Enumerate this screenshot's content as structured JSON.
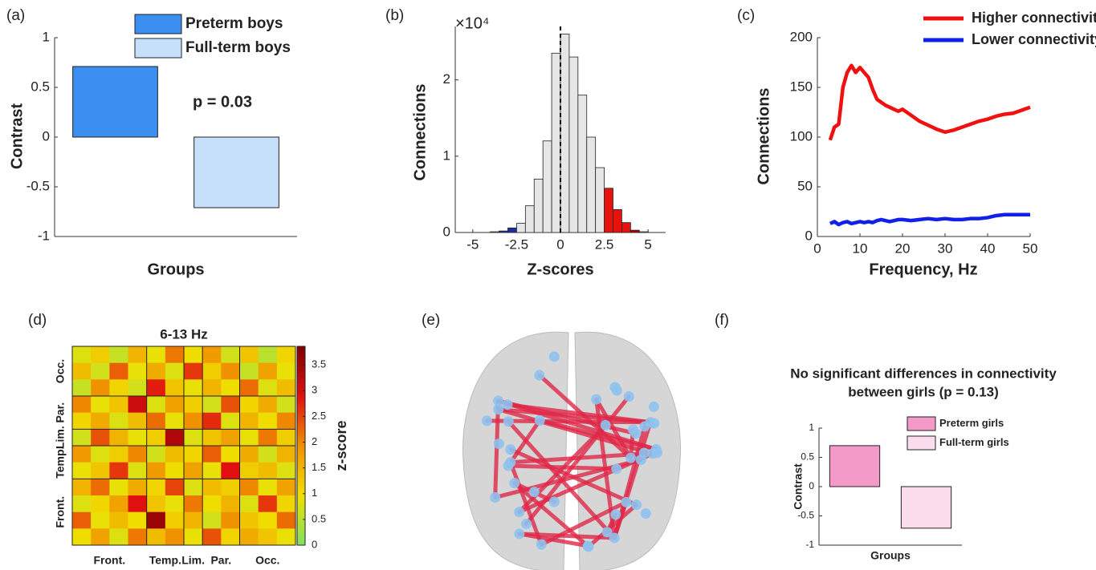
{
  "chart_data": [
    {
      "type": "bar",
      "label": "(a)",
      "xlabel": "Groups",
      "ylabel": "Contrast",
      "annotation": "p = 0.03",
      "series": [
        {
          "name": "Preterm boys",
          "color": "#3a8ff0",
          "values": [
            0.71
          ]
        },
        {
          "name": "Full-term boys",
          "color": "#c6e0fb",
          "values": [
            -0.71
          ]
        }
      ],
      "ylim": [
        -1,
        1
      ],
      "yticks": [
        -1,
        -0.5,
        0,
        0.5,
        1
      ]
    },
    {
      "type": "histogram",
      "label": "(b)",
      "xlabel": "Z-scores",
      "ylabel": "Connections",
      "multiplier": "×10⁴",
      "bins": [
        -4,
        -3.5,
        -3,
        -2.5,
        -2,
        -1.5,
        -1,
        -0.5,
        0,
        0.5,
        1,
        1.5,
        2,
        2.5,
        3,
        3.5,
        4,
        4.5,
        5
      ],
      "values": [
        0.01,
        0.02,
        0.06,
        0.12,
        0.35,
        0.7,
        1.2,
        2.35,
        2.6,
        2.3,
        1.8,
        1.25,
        0.85,
        0.58,
        0.3,
        0.13,
        0.03,
        0.01
      ],
      "colors": [
        "#e6e6e6",
        "#1a2fa0",
        "#1a2fa0",
        "#e6e6e6",
        "#e6e6e6",
        "#e6e6e6",
        "#e6e6e6",
        "#e6e6e6",
        "#e6e6e6",
        "#e6e6e6",
        "#e6e6e6",
        "#e6e6e6",
        "#e6e6e6",
        "#e8120c",
        "#e8120c",
        "#e8120c",
        "#b00000",
        "#e6e6e6"
      ],
      "vline": 0,
      "xlim": [
        -6,
        6
      ],
      "xticks": [
        -5,
        -2.5,
        0,
        2.5,
        5
      ],
      "ylim": [
        0,
        2.7
      ],
      "yticks": [
        0,
        1,
        2
      ]
    },
    {
      "type": "line",
      "label": "(c)",
      "xlabel": "Frequency, Hz",
      "ylabel": "Connections",
      "x": [
        3,
        4,
        5,
        6,
        7,
        8,
        9,
        10,
        11,
        12,
        13,
        14,
        15,
        16,
        17,
        18,
        19,
        20,
        22,
        24,
        26,
        28,
        30,
        32,
        34,
        36,
        38,
        40,
        42,
        44,
        46,
        48,
        50
      ],
      "series": [
        {
          "name": "Higher connectivity",
          "color": "#f01010",
          "values": [
            97,
            110,
            113,
            150,
            165,
            172,
            165,
            170,
            165,
            160,
            148,
            138,
            135,
            132,
            130,
            128,
            126,
            128,
            122,
            116,
            112,
            108,
            105,
            107,
            110,
            113,
            116,
            118,
            121,
            123,
            124,
            127,
            130
          ]
        },
        {
          "name": "Lower connectivity",
          "color": "#1020e8",
          "values": [
            13,
            15,
            12,
            14,
            15,
            13,
            14,
            15,
            14,
            15,
            14,
            16,
            17,
            16,
            15,
            16,
            17,
            17,
            16,
            17,
            18,
            17,
            18,
            17,
            17,
            18,
            18,
            19,
            21,
            22,
            22,
            22,
            22
          ]
        }
      ],
      "xlim": [
        0,
        50
      ],
      "xticks": [
        0,
        10,
        20,
        30,
        40,
        50
      ],
      "ylim": [
        0,
        200
      ],
      "yticks": [
        0,
        50,
        100,
        150,
        200
      ]
    },
    {
      "type": "heatmap",
      "label": "(d)",
      "title": "6-13 Hz",
      "colorbar_label": "z-score",
      "regions": [
        "Front.",
        "Temp.",
        "Lim.",
        "Par.",
        "Occ."
      ],
      "region_edges": [
        4,
        6,
        7,
        9
      ],
      "matrix": [
        [
          0.8,
          1.2,
          0.6,
          1.5,
          0.9,
          2.1,
          1.0,
          1.8,
          0.7,
          1.3,
          0.5,
          1.1
        ],
        [
          1.4,
          0.7,
          2.3,
          0.9,
          1.6,
          0.8,
          2.6,
          1.2,
          1.9,
          0.6,
          1.7,
          0.9
        ],
        [
          0.6,
          1.9,
          1.1,
          0.7,
          2.8,
          1.3,
          0.9,
          1.5,
          1.0,
          2.2,
          0.8,
          1.4
        ],
        [
          2.0,
          0.9,
          1.3,
          3.1,
          0.8,
          1.7,
          1.2,
          0.7,
          2.4,
          1.1,
          1.6,
          0.7
        ],
        [
          1.1,
          1.6,
          0.8,
          1.4,
          2.2,
          0.9,
          1.9,
          2.7,
          0.8,
          1.5,
          1.0,
          2.0
        ],
        [
          0.7,
          2.4,
          1.5,
          0.9,
          1.2,
          3.4,
          0.8,
          1.3,
          1.7,
          0.9,
          2.1,
          1.2
        ],
        [
          1.8,
          0.8,
          1.2,
          2.0,
          0.7,
          1.4,
          1.1,
          2.3,
          1.0,
          1.6,
          0.7,
          1.5
        ],
        [
          0.9,
          1.3,
          2.6,
          0.8,
          1.8,
          1.0,
          1.7,
          0.9,
          2.9,
          1.2,
          1.4,
          0.8
        ],
        [
          1.5,
          2.2,
          0.9,
          1.6,
          1.1,
          2.5,
          0.8,
          1.4,
          1.2,
          2.0,
          0.9,
          1.7
        ],
        [
          0.8,
          1.1,
          1.7,
          2.9,
          1.3,
          0.9,
          2.1,
          1.0,
          1.5,
          0.8,
          2.6,
          1.1
        ],
        [
          2.3,
          0.9,
          1.4,
          1.0,
          3.6,
          1.2,
          1.5,
          0.7,
          1.9,
          1.3,
          1.0,
          2.2
        ],
        [
          1.0,
          1.7,
          0.8,
          2.1,
          1.4,
          1.9,
          0.9,
          2.4,
          1.1,
          1.6,
          1.3,
          0.9
        ]
      ],
      "colormap": [
        "#80e060",
        "#f0e000",
        "#f09000",
        "#e01010",
        "#800000"
      ],
      "clim": [
        0,
        3.86
      ],
      "cticks": [
        0,
        0.5,
        1,
        1.5,
        2,
        2.5,
        3,
        3.5
      ]
    },
    {
      "type": "network",
      "label": "(e)"
    },
    {
      "type": "bar",
      "label": "(f)",
      "title": [
        "No significant differences in connectivity",
        "between girls (p = 0.13)"
      ],
      "xlabel": "Groups",
      "ylabel": "Contrast",
      "series": [
        {
          "name": "Preterm girls",
          "color": "#f49ac8",
          "values": [
            0.7
          ]
        },
        {
          "name": "Full-term girls",
          "color": "#fbdced",
          "values": [
            -0.71
          ]
        }
      ],
      "ylim": [
        -1,
        1
      ],
      "yticks": [
        -1,
        -0.5,
        0,
        0.5,
        1
      ]
    }
  ]
}
